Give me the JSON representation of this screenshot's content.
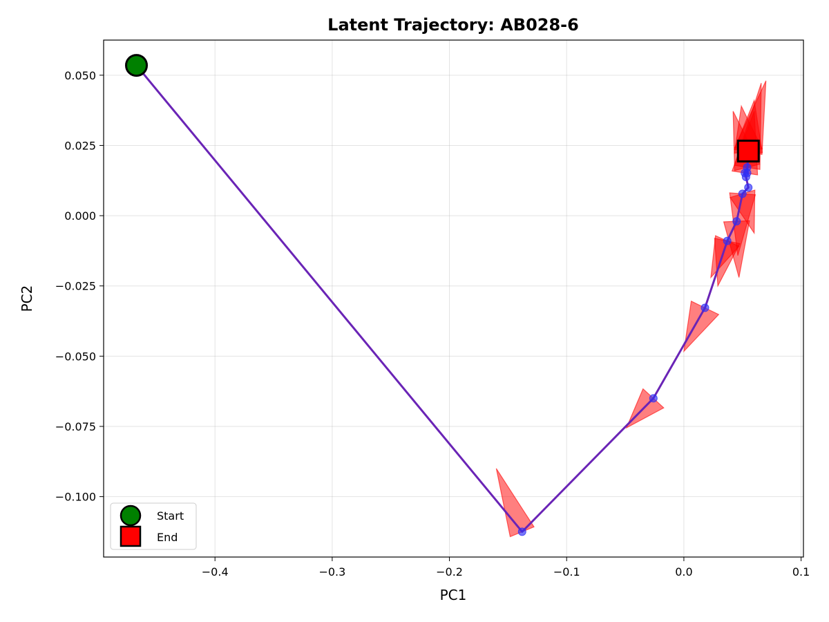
{
  "chart_data": {
    "type": "scatter",
    "title": "Latent Trajectory: AB028-6",
    "xlabel": "PC1",
    "ylabel": "PC2",
    "xlim": [
      -0.495,
      0.102
    ],
    "ylim": [
      -0.1215,
      0.0625
    ],
    "x_ticks": [
      -0.4,
      -0.3,
      -0.2,
      -0.1,
      0.0,
      0.1
    ],
    "x_tick_labels": [
      "−0.4",
      "−0.3",
      "−0.2",
      "−0.1",
      "0.0",
      "0.1"
    ],
    "y_ticks": [
      -0.1,
      -0.075,
      -0.05,
      -0.025,
      0.0,
      0.025,
      0.05
    ],
    "y_tick_labels": [
      "−0.100",
      "−0.075",
      "−0.050",
      "−0.025",
      "0.000",
      "0.025",
      "0.050"
    ],
    "grid": true,
    "legend_position": "lower-left",
    "colors": {
      "trajectory": "#6a24b6",
      "points": "#2f2ff5",
      "arrows": "#ff0000",
      "start": "#008000",
      "end": "#ff0000"
    },
    "trajectory": {
      "x": [
        -0.467,
        -0.138,
        -0.026,
        0.018,
        0.037,
        0.045,
        0.05,
        0.055,
        0.053,
        0.052,
        0.054,
        0.054,
        0.055
      ],
      "y": [
        0.0535,
        -0.1125,
        -0.065,
        -0.0328,
        -0.009,
        -0.002,
        0.0078,
        0.01,
        0.0138,
        0.0152,
        0.0172,
        0.0152,
        0.023
      ]
    },
    "arrows": [
      {
        "x": -0.138,
        "y": -0.1125,
        "dx": -0.022,
        "dy": 0.0225,
        "width": 0.011
      },
      {
        "x": -0.026,
        "y": -0.065,
        "dx": -0.023,
        "dy": -0.0105,
        "width": 0.012
      },
      {
        "x": 0.018,
        "y": -0.0328,
        "dx": -0.018,
        "dy": -0.0155,
        "width": 0.013
      },
      {
        "x": 0.037,
        "y": -0.009,
        "dx": -0.014,
        "dy": -0.013,
        "width": 0.011
      },
      {
        "x": 0.037,
        "y": -0.009,
        "dx": -0.008,
        "dy": -0.016,
        "width": 0.011
      },
      {
        "x": 0.045,
        "y": -0.002,
        "dx": 0.002,
        "dy": -0.02,
        "width": 0.011
      },
      {
        "x": 0.05,
        "y": 0.0078,
        "dx": -0.004,
        "dy": -0.022,
        "width": 0.011
      },
      {
        "x": 0.05,
        "y": 0.0078,
        "dx": 0.01,
        "dy": -0.014,
        "width": 0.011
      },
      {
        "x": 0.052,
        "y": 0.0152,
        "dx": 0.008,
        "dy": 0.022,
        "width": 0.011
      },
      {
        "x": 0.054,
        "y": 0.0172,
        "dx": -0.012,
        "dy": 0.02,
        "width": 0.011
      },
      {
        "x": 0.054,
        "y": 0.0172,
        "dx": 0.012,
        "dy": 0.03,
        "width": 0.011
      },
      {
        "x": 0.055,
        "y": 0.023,
        "dx": 0.005,
        "dy": 0.018,
        "width": 0.012
      },
      {
        "x": 0.055,
        "y": 0.023,
        "dx": -0.006,
        "dy": 0.016,
        "width": 0.012
      },
      {
        "x": 0.055,
        "y": 0.023,
        "dx": 0.015,
        "dy": 0.025,
        "width": 0.012
      }
    ],
    "start": {
      "x": -0.467,
      "y": 0.0535
    },
    "end": {
      "x": 0.055,
      "y": 0.023
    },
    "legend": [
      {
        "label": "Start",
        "marker": "circle",
        "color": "#008000"
      },
      {
        "label": "End",
        "marker": "square",
        "color": "#ff0000"
      }
    ]
  }
}
